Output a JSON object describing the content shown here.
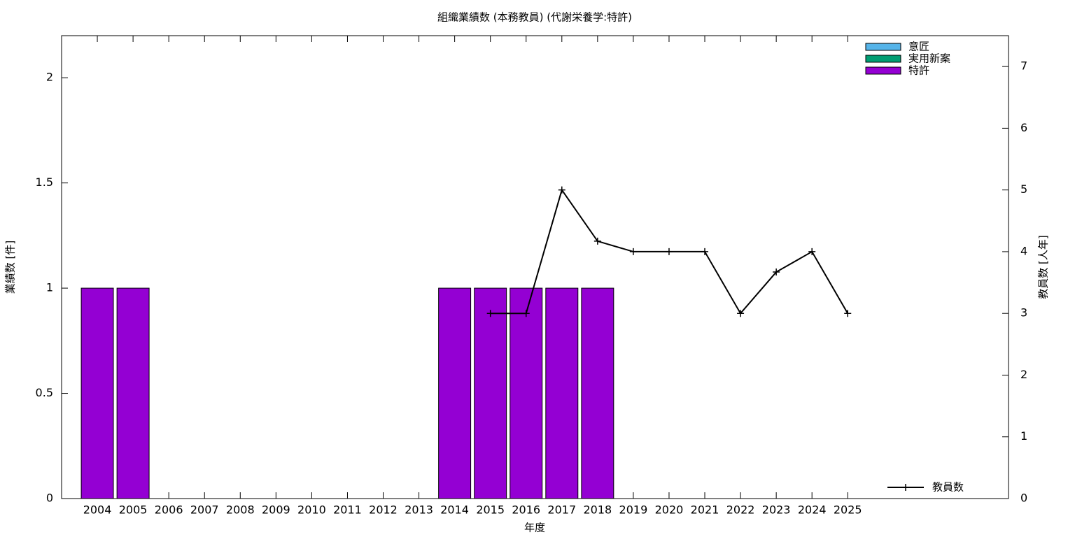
{
  "chart_data": {
    "type": "bar",
    "stacked": true,
    "title": "組織業績数 (本務教員) (代謝栄養学:特許)",
    "x_label": "年度",
    "y_label": "業績数 [件]",
    "y2_label": "教員数 [人年]",
    "categories": [
      "2004",
      "2005",
      "2006",
      "2007",
      "2008",
      "2009",
      "2010",
      "2011",
      "2012",
      "2013",
      "2014",
      "2015",
      "2016",
      "2017",
      "2018",
      "2019",
      "2020",
      "2021",
      "2022",
      "2023",
      "2024",
      "2025"
    ],
    "series": [
      {
        "name": "意匠",
        "color": "#56b4e9",
        "values": [
          0,
          0,
          0,
          0,
          0,
          0,
          0,
          0,
          0,
          0,
          0,
          0,
          0,
          0,
          0,
          0,
          0,
          0,
          0,
          0,
          0,
          0
        ]
      },
      {
        "name": "実用新案",
        "color": "#009e73",
        "values": [
          0,
          0,
          0,
          0,
          0,
          0,
          0,
          0,
          0,
          0,
          0,
          0,
          0,
          0,
          0,
          0,
          0,
          0,
          0,
          0,
          0,
          0
        ]
      },
      {
        "name": "特許",
        "color": "#9400d3",
        "values": [
          1,
          1,
          0,
          0,
          0,
          0,
          0,
          0,
          0,
          0,
          1,
          1,
          1,
          1,
          1,
          0,
          0,
          0,
          0,
          0,
          0,
          0
        ]
      },
      {
        "name": "教員数",
        "type": "line",
        "axis": "y2",
        "color": "#000000",
        "values": [
          null,
          null,
          null,
          null,
          null,
          null,
          null,
          null,
          null,
          null,
          null,
          3,
          3,
          5,
          4.17,
          4,
          4,
          4,
          3,
          3.67,
          4,
          3
        ]
      }
    ],
    "ylim": [
      0,
      2.2
    ],
    "yticks": [
      0,
      0.5,
      1,
      1.5,
      2
    ],
    "y2lim": [
      0,
      7.5
    ],
    "y2ticks": [
      0,
      1,
      2,
      3,
      4,
      5,
      6,
      7
    ],
    "grid": false,
    "legend": "top-right",
    "line_legend": "bottom-right"
  }
}
